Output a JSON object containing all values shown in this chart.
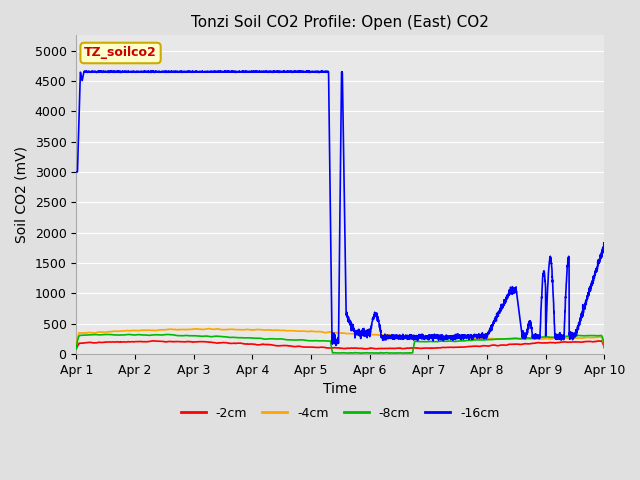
{
  "title": "Tonzi Soil CO2 Profile: Open (East) CO2",
  "ylabel": "Soil CO2 (mV)",
  "xlabel": "Time",
  "ylim": [
    0,
    5250
  ],
  "yticks": [
    0,
    500,
    1000,
    1500,
    2000,
    2500,
    3000,
    3500,
    4000,
    4500,
    5000
  ],
  "xtick_labels": [
    "Apr 1",
    "Apr 2",
    "Apr 3",
    "Apr 4",
    "Apr 5",
    "Apr 6",
    "Apr 7",
    "Apr 8",
    "Apr 9",
    "Apr 10"
  ],
  "legend_label": "TZ_soilco2",
  "legend_box_facecolor": "#ffffcc",
  "legend_box_edgecolor": "#ccaa00",
  "legend_text_color": "#cc0000",
  "bg_color": "#e8e8e8",
  "grid_color": "#ffffff",
  "fig_facecolor": "#e0e0e0",
  "line_colors": {
    "2cm": "#ff0000",
    "4cm": "#ffa500",
    "8cm": "#00bb00",
    "16cm": "#0000ff"
  },
  "line_labels": [
    "-2cm",
    "-4cm",
    "-8cm",
    "-16cm"
  ],
  "title_fontsize": 11,
  "axis_fontsize": 9,
  "ylabel_fontsize": 10
}
